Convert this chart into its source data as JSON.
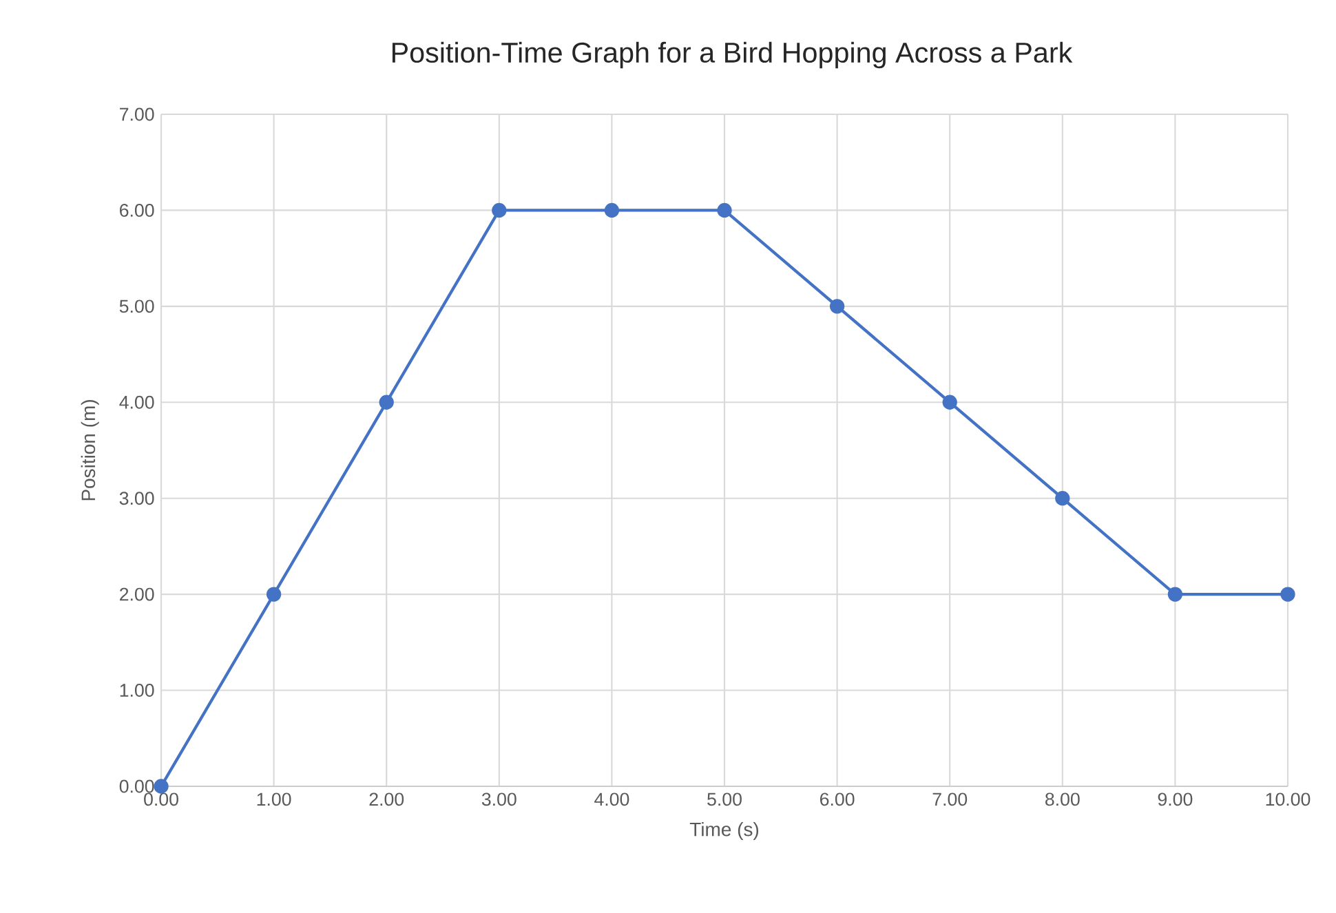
{
  "chart_data": {
    "type": "line",
    "title": "Position-Time Graph for a Bird Hopping Across a Park",
    "xlabel": "Time (s)",
    "ylabel": "Position (m)",
    "x": [
      0,
      1,
      2,
      3,
      4,
      5,
      6,
      7,
      8,
      9,
      10
    ],
    "series": [
      {
        "color": "#4472c4",
        "values": [
          0,
          2,
          4,
          6,
          6,
          6,
          5,
          4,
          3,
          2,
          2
        ]
      }
    ],
    "xlim": [
      0,
      10
    ],
    "ylim": [
      0,
      7
    ],
    "xticks": [
      {
        "value": 0,
        "label": "0.00"
      },
      {
        "value": 1,
        "label": "1.00"
      },
      {
        "value": 2,
        "label": "2.00"
      },
      {
        "value": 3,
        "label": "3.00"
      },
      {
        "value": 4,
        "label": "4.00"
      },
      {
        "value": 5,
        "label": "5.00"
      },
      {
        "value": 6,
        "label": "6.00"
      },
      {
        "value": 7,
        "label": "7.00"
      },
      {
        "value": 8,
        "label": "8.00"
      },
      {
        "value": 9,
        "label": "9.00"
      },
      {
        "value": 10,
        "label": "10.00"
      }
    ],
    "yticks": [
      {
        "value": 0,
        "label": "0.00"
      },
      {
        "value": 1,
        "label": "1.00"
      },
      {
        "value": 2,
        "label": "2.00"
      },
      {
        "value": 3,
        "label": "3.00"
      },
      {
        "value": 4,
        "label": "4.00"
      },
      {
        "value": 5,
        "label": "5.00"
      },
      {
        "value": 6,
        "label": "6.00"
      },
      {
        "value": 7,
        "label": "7.00"
      }
    ],
    "grid": true,
    "marker": "circle",
    "line_style": "solid"
  }
}
